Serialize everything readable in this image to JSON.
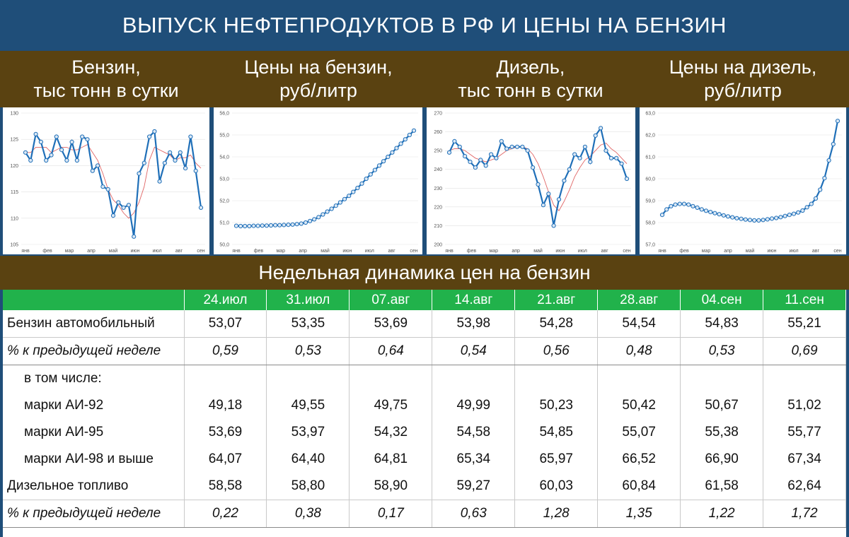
{
  "title": "ВЫПУСК НЕФТЕПРОДУКТОВ В РФ И ЦЕНЫ НА БЕНЗИН",
  "panels": [
    {
      "title": "Бензин,\nтыс тонн в сутки"
    },
    {
      "title": "Цены на бензин,\nруб/литр"
    },
    {
      "title": "Дизель,\nтыс тонн в сутки"
    },
    {
      "title": "Цены на дизель,\nруб/литр"
    }
  ],
  "table_title": "Недельная динамика цен на бензин",
  "colors": {
    "header_blue": "#1f4e79",
    "header_brown": "#5a4211",
    "table_green": "#21b24b",
    "line_blue": "#1f6fb8",
    "ma_red": "#e06666"
  },
  "chart_data": [
    {
      "type": "line",
      "months": [
        "янв",
        "фев",
        "мар",
        "апр",
        "май",
        "июн",
        "июл",
        "авг",
        "сен"
      ],
      "ylim": [
        105,
        130
      ],
      "yticks": [
        "105",
        "110",
        "115",
        "120",
        "125",
        "130"
      ],
      "series": [
        {
          "values": [
            122.5,
            121,
            126,
            124.5,
            121,
            122,
            125.5,
            123,
            121,
            124.5,
            121,
            125.5,
            125,
            119,
            120,
            116,
            115.5,
            110.5,
            113,
            112,
            112.5,
            106.5,
            118.5,
            120.5,
            125.5,
            126.5,
            117,
            120.5,
            122.5,
            121,
            122.5,
            119.5,
            125.5,
            119,
            112
          ]
        },
        {
          "values": [
            122.5,
            122.5,
            123.5,
            123.5,
            123.5,
            122.5,
            123,
            123.5,
            123.5,
            123,
            123,
            123.5,
            124,
            122.5,
            121,
            118.5,
            115.5,
            113.5,
            112.5,
            111,
            110,
            111,
            113,
            116,
            121,
            123.5,
            123,
            122.5,
            122,
            121,
            121.5,
            121.5,
            122,
            120.5,
            119.5
          ]
        }
      ]
    },
    {
      "type": "line",
      "months": [
        "янв",
        "фев",
        "мар",
        "апр",
        "май",
        "июн",
        "июл",
        "авг",
        "сен"
      ],
      "ylim": [
        50.0,
        56.0
      ],
      "yticks": [
        "50,0",
        "51,0",
        "52,0",
        "53,0",
        "54,0",
        "55,0",
        "56,0"
      ],
      "series": [
        {
          "values": [
            50.85,
            50.84,
            50.84,
            50.84,
            50.85,
            50.85,
            50.86,
            50.86,
            50.87,
            50.88,
            50.88,
            50.89,
            50.9,
            50.91,
            50.93,
            50.95,
            51.0,
            51.07,
            51.15,
            51.25,
            51.37,
            51.5,
            51.63,
            51.77,
            51.92,
            52.07,
            52.22,
            52.4,
            52.58,
            52.78,
            53.0,
            53.2,
            53.4,
            53.6,
            53.8,
            54.0,
            54.2,
            54.4,
            54.6,
            54.8,
            55.0,
            55.2
          ]
        }
      ]
    },
    {
      "type": "line",
      "months": [
        "янв",
        "фев",
        "мар",
        "апр",
        "май",
        "июн",
        "июл",
        "авг",
        "сен"
      ],
      "ylim": [
        200,
        270
      ],
      "yticks": [
        "200",
        "210",
        "220",
        "230",
        "240",
        "250",
        "260",
        "270"
      ],
      "series": [
        {
          "values": [
            249,
            255,
            252,
            247,
            244,
            241,
            245,
            242,
            248,
            246,
            255,
            251,
            252,
            252,
            252,
            250,
            241,
            232,
            221,
            227,
            210,
            224,
            234,
            240,
            248,
            246,
            252,
            244,
            258,
            262,
            250,
            246,
            246,
            243,
            235
          ]
        },
        {
          "values": [
            250,
            251,
            251,
            250,
            248,
            246,
            245,
            244,
            245,
            246,
            248,
            250,
            251,
            252,
            252,
            251,
            248,
            243,
            236,
            228,
            221,
            218,
            223,
            229,
            236,
            241,
            245,
            247,
            250,
            253,
            254,
            251,
            249,
            246,
            243
          ]
        }
      ]
    },
    {
      "type": "line",
      "months": [
        "янв",
        "фев",
        "мар",
        "апр",
        "май",
        "июн",
        "июл",
        "авг",
        "сен"
      ],
      "ylim": [
        57.0,
        63.0
      ],
      "yticks": [
        "57,0",
        "58,0",
        "59,0",
        "60,0",
        "61,0",
        "62,0",
        "63,0"
      ],
      "series": [
        {
          "values": [
            58.35,
            58.6,
            58.75,
            58.82,
            58.85,
            58.85,
            58.82,
            58.75,
            58.68,
            58.6,
            58.54,
            58.48,
            58.43,
            58.38,
            58.33,
            58.28,
            58.24,
            58.2,
            58.17,
            58.14,
            58.12,
            58.1,
            58.1,
            58.12,
            58.15,
            58.18,
            58.21,
            58.25,
            58.3,
            58.35,
            58.4,
            58.46,
            58.55,
            58.7,
            58.85,
            59.1,
            59.5,
            60.03,
            60.84,
            61.58,
            62.64
          ]
        }
      ]
    }
  ],
  "table": {
    "columns": [
      "24.июл",
      "31.июл",
      "07.авг",
      "14.авг",
      "21.авг",
      "28.авг",
      "04.сен",
      "11.сен"
    ],
    "rows": [
      {
        "label": "Бензин автомобильный",
        "values": [
          "53,07",
          "53,35",
          "53,69",
          "53,98",
          "54,28",
          "54,54",
          "54,83",
          "55,21"
        ]
      },
      {
        "label": "% к предыдущей неделе",
        "values": [
          "0,59",
          "0,53",
          "0,64",
          "0,54",
          "0,56",
          "0,48",
          "0,53",
          "0,69"
        ]
      },
      {
        "label": "в том числе:",
        "values": [
          "",
          "",
          "",
          "",
          "",
          "",
          "",
          ""
        ]
      },
      {
        "label": "марки АИ-92",
        "values": [
          "49,18",
          "49,55",
          "49,75",
          "49,99",
          "50,23",
          "50,42",
          "50,67",
          "51,02"
        ]
      },
      {
        "label": "марки АИ-95",
        "values": [
          "53,69",
          "53,97",
          "54,32",
          "54,58",
          "54,85",
          "55,07",
          "55,38",
          "55,77"
        ]
      },
      {
        "label": "марки АИ-98 и выше",
        "values": [
          "64,07",
          "64,40",
          "64,81",
          "65,34",
          "65,97",
          "66,52",
          "66,90",
          "67,34"
        ]
      },
      {
        "label": "Дизельное топливо",
        "values": [
          "58,58",
          "58,80",
          "58,90",
          "59,27",
          "60,03",
          "60,84",
          "61,58",
          "62,64"
        ]
      },
      {
        "label": "% к предыдущей неделе",
        "values": [
          "0,22",
          "0,38",
          "0,17",
          "0,63",
          "1,28",
          "1,35",
          "1,22",
          "1,72"
        ]
      }
    ]
  }
}
